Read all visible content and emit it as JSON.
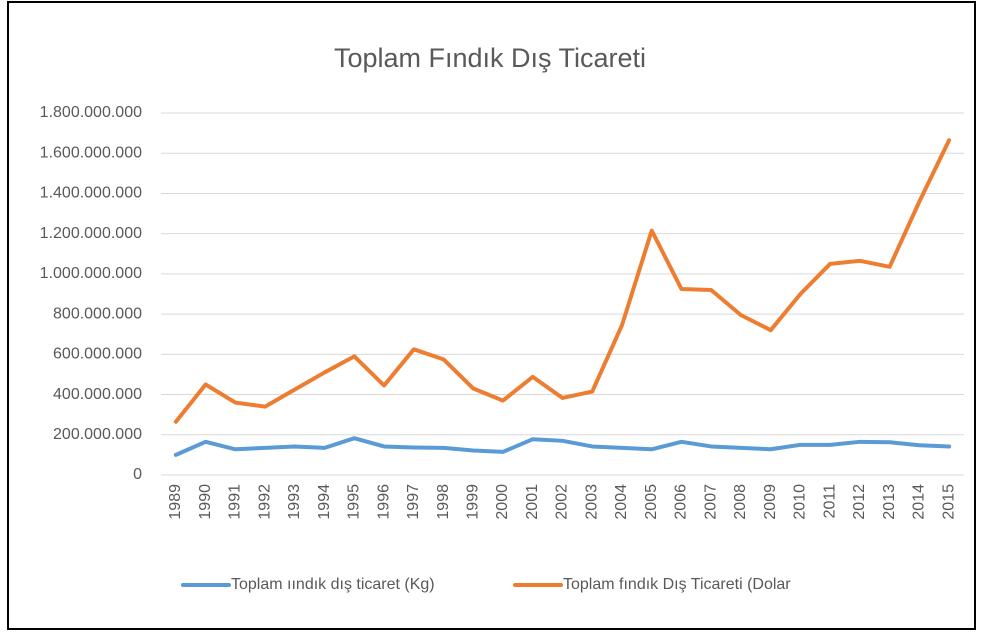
{
  "chart_data": {
    "type": "line",
    "title": "Toplam Fındık Dış Ticareti",
    "categories": [
      "1989",
      "1990",
      "1991",
      "1992",
      "1993",
      "1994",
      "1995",
      "1996",
      "1997",
      "1998",
      "1999",
      "2000",
      "2001",
      "2002",
      "2003",
      "2004",
      "2005",
      "2006",
      "2007",
      "2008",
      "2009",
      "2010",
      "2011",
      "2012",
      "2013",
      "2014",
      "2015"
    ],
    "series": [
      {
        "name": "Toplam ıındık dış ticaret (Kg)",
        "color": "#5b9bd5",
        "values": [
          100000000,
          165000000,
          128000000,
          135000000,
          142000000,
          135000000,
          183000000,
          142000000,
          137000000,
          135000000,
          122000000,
          115000000,
          178000000,
          170000000,
          142000000,
          135000000,
          128000000,
          165000000,
          142000000,
          135000000,
          128000000,
          150000000,
          150000000,
          165000000,
          163000000,
          148000000,
          142000000
        ]
      },
      {
        "name": "Toplam fındık Dış Ticareti (Dolar",
        "color": "#ed7d31",
        "values": [
          265000000,
          450000000,
          360000000,
          340000000,
          425000000,
          510000000,
          590000000,
          445000000,
          625000000,
          575000000,
          430000000,
          370000000,
          488000000,
          383000000,
          415000000,
          745000000,
          1215000000,
          925000000,
          920000000,
          795000000,
          720000000,
          900000000,
          1050000000,
          1065000000,
          1035000000,
          1360000000,
          1665000000
        ]
      }
    ],
    "ylim": [
      0,
      1800000000
    ],
    "yticks": [
      0,
      {
        "value": 200000000,
        "label": "200.000.000"
      },
      {
        "value": 400000000,
        "label": "400.000.000"
      },
      {
        "value": 600000000,
        "label": "600.000.000"
      },
      {
        "value": 800000000,
        "label": "800.000.000"
      },
      {
        "value": 1000000000,
        "label": "1.000.000.000"
      },
      {
        "value": 1200000000,
        "label": "1.200.000.000"
      },
      {
        "value": 1400000000,
        "label": "1.400.000.000"
      },
      {
        "value": 1600000000,
        "label": "1.600.000.000"
      },
      {
        "value": 1800000000,
        "label": "1.800.000.000"
      }
    ],
    "grid": true,
    "legend": "bottom"
  }
}
